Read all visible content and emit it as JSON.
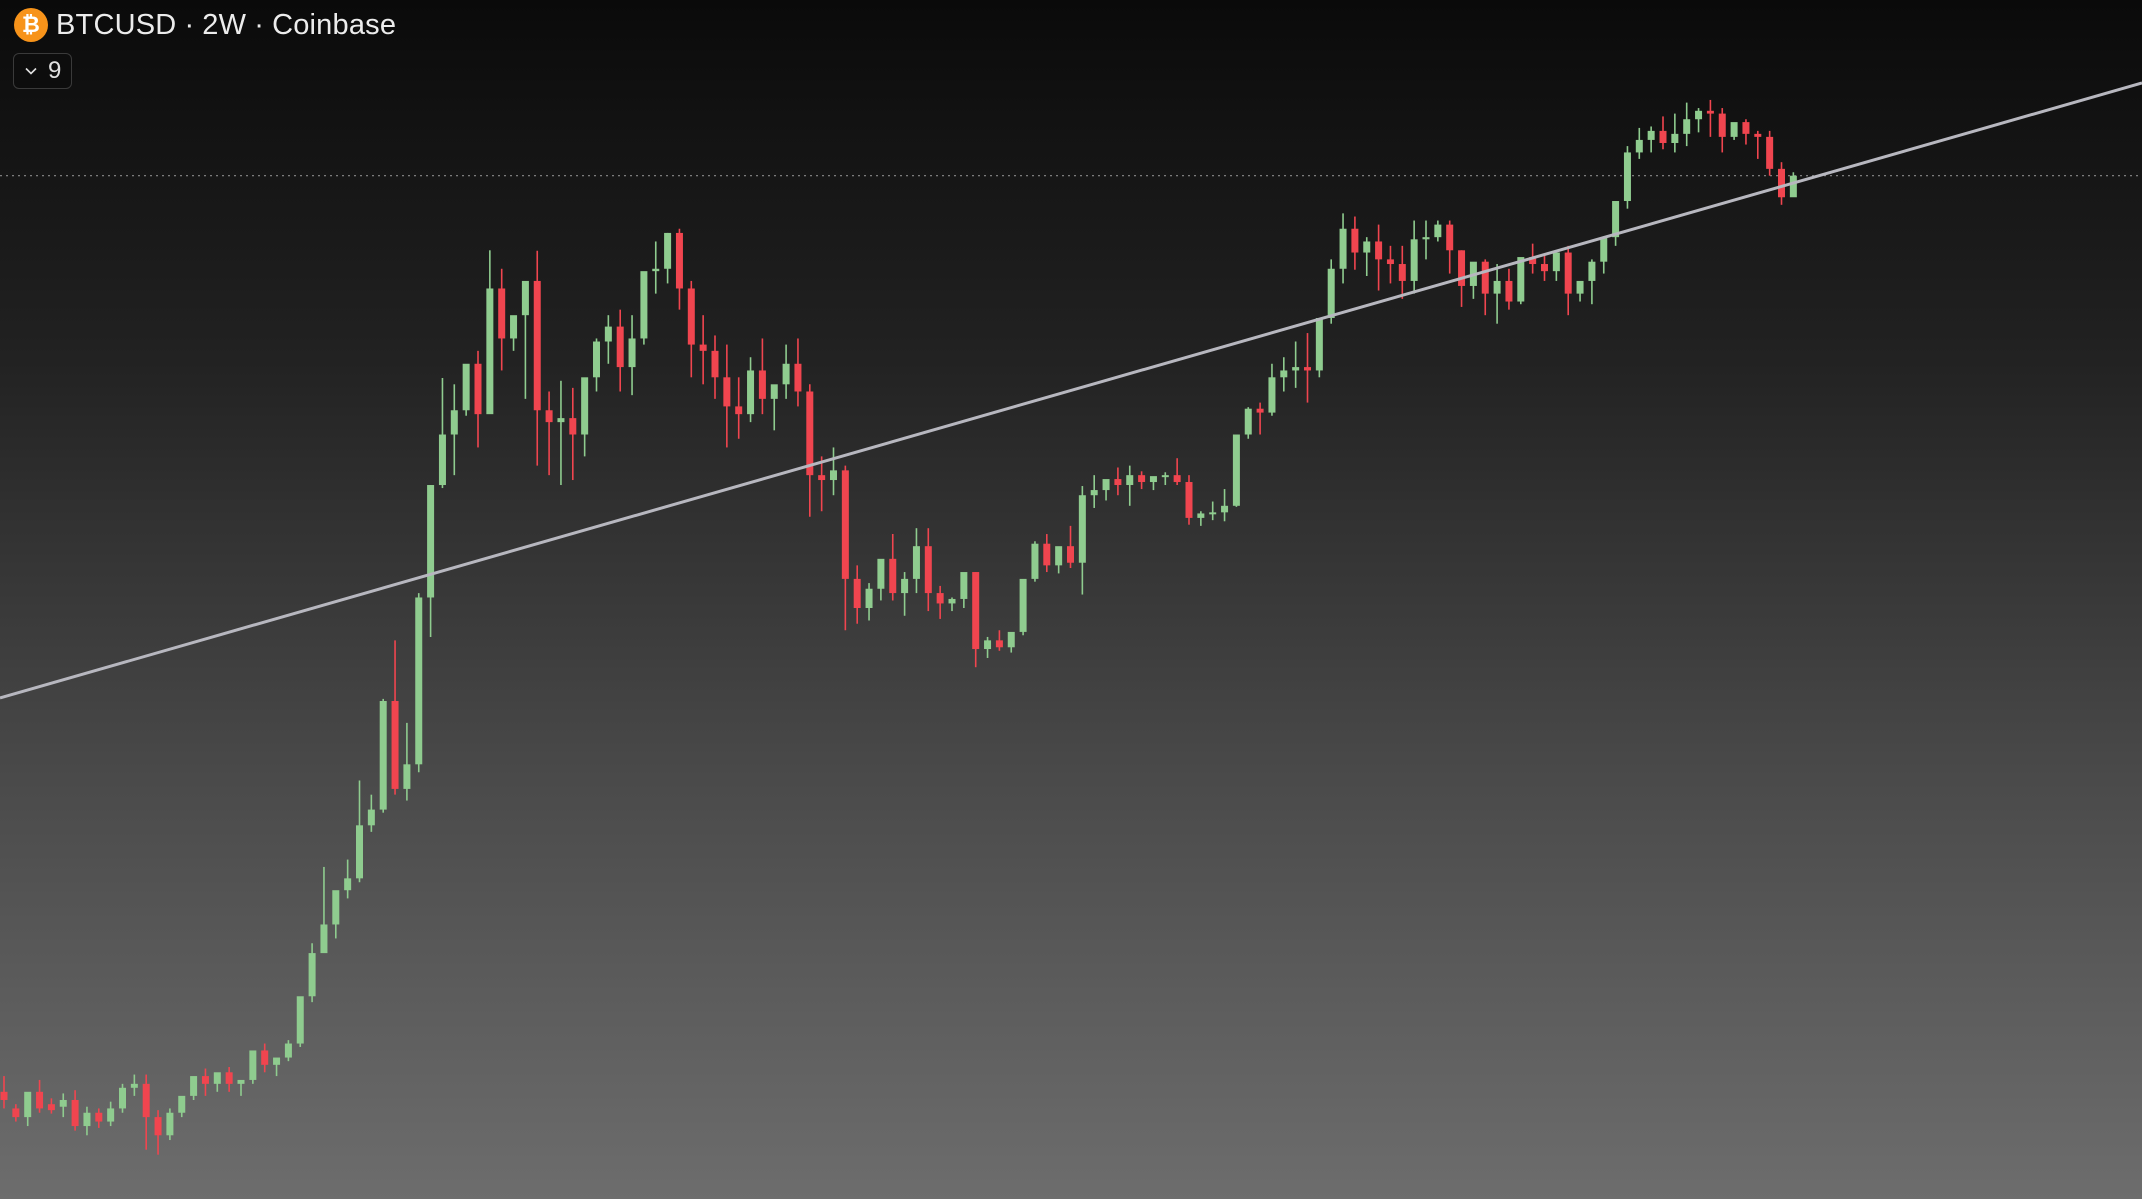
{
  "header": {
    "coin_glyph": "₿",
    "symbol": "BTCUSD",
    "separator": "·",
    "interval": "2W",
    "exchange": "Coinbase",
    "coin_color": "#f7931a"
  },
  "indicators_toggle": {
    "count": "9",
    "icon": "chevron-down-icon"
  },
  "colors": {
    "up": "#8fcc8f",
    "down": "#f0454f",
    "trendline": "#b7b7bf",
    "price_line": "#8a8a8a"
  },
  "chart_data": {
    "type": "candlestick",
    "price_scale": "log",
    "ylim": [
      3000,
      120000
    ],
    "last_price": 84000,
    "candles": [
      [
        3600,
        3800,
        3500,
        3400
      ],
      [
        3400,
        3450,
        3300,
        3250
      ],
      [
        3300,
        3500,
        3600,
        3200
      ],
      [
        3600,
        3750,
        3400,
        3350
      ],
      [
        3450,
        3520,
        3380,
        3340
      ],
      [
        3420,
        3580,
        3500,
        3300
      ],
      [
        3500,
        3620,
        3200,
        3150
      ],
      [
        3200,
        3420,
        3350,
        3100
      ],
      [
        3350,
        3400,
        3250,
        3180
      ],
      [
        3250,
        3480,
        3400,
        3200
      ],
      [
        3400,
        3700,
        3650,
        3350
      ],
      [
        3650,
        3820,
        3700,
        3550
      ],
      [
        3700,
        3820,
        3300,
        2950
      ],
      [
        3300,
        3380,
        3100,
        2900
      ],
      [
        3100,
        3400,
        3350,
        3050
      ],
      [
        3350,
        3450,
        3550,
        3300
      ],
      [
        3550,
        3640,
        3800,
        3500
      ],
      [
        3800,
        3900,
        3700,
        3550
      ],
      [
        3700,
        3720,
        3850,
        3600
      ],
      [
        3850,
        3920,
        3700,
        3600
      ],
      [
        3700,
        3720,
        3750,
        3550
      ],
      [
        3750,
        3850,
        4150,
        3700
      ],
      [
        4150,
        4250,
        3950,
        3850
      ],
      [
        3950,
        3960,
        4050,
        3800
      ],
      [
        4050,
        4300,
        4250,
        4000
      ],
      [
        4250,
        4700,
        5000,
        4200
      ],
      [
        5000,
        6000,
        5800,
        4900
      ],
      [
        5800,
        7800,
        6400,
        6200
      ],
      [
        6400,
        7000,
        7200,
        6100
      ],
      [
        7200,
        8000,
        7500,
        7000
      ],
      [
        7500,
        10500,
        9000,
        7400
      ],
      [
        9000,
        10000,
        9500,
        8800
      ],
      [
        9500,
        13900,
        13800,
        9400
      ],
      [
        13800,
        17000,
        10200,
        10000
      ],
      [
        10200,
        12800,
        11100,
        9800
      ],
      [
        11100,
        20000,
        19700,
        10800
      ],
      [
        19700,
        29000,
        29000,
        17200
      ],
      [
        29000,
        41900,
        34500,
        28700
      ],
      [
        34500,
        41000,
        37500,
        30000
      ],
      [
        37500,
        42000,
        44000,
        36800
      ],
      [
        44000,
        46000,
        37000,
        33000
      ],
      [
        37000,
        65000,
        57000,
        53000
      ],
      [
        57000,
        61000,
        48000,
        43000
      ],
      [
        48000,
        50000,
        52000,
        46000
      ],
      [
        52000,
        58000,
        58500,
        39000
      ],
      [
        58500,
        64900,
        37500,
        31000
      ],
      [
        37500,
        40000,
        36000,
        30000
      ],
      [
        36000,
        41500,
        36500,
        29000
      ],
      [
        36500,
        40500,
        34500,
        29500
      ],
      [
        34500,
        38000,
        42000,
        32000
      ],
      [
        42000,
        48000,
        47500,
        40000
      ],
      [
        47500,
        52000,
        50000,
        44000
      ],
      [
        50000,
        53000,
        43500,
        40000
      ],
      [
        43500,
        52000,
        48000,
        39500
      ],
      [
        48000,
        58000,
        60500,
        47000
      ],
      [
        60500,
        67000,
        61000,
        56000
      ],
      [
        61000,
        69000,
        69000,
        58000
      ],
      [
        69000,
        70000,
        57000,
        53000
      ],
      [
        57000,
        58500,
        47000,
        42000
      ],
      [
        47000,
        52000,
        46000,
        41000
      ],
      [
        46000,
        48500,
        42000,
        39000
      ],
      [
        42000,
        47000,
        38000,
        33000
      ],
      [
        38000,
        42000,
        37000,
        34000
      ],
      [
        37000,
        45000,
        43000,
        36000
      ],
      [
        43000,
        48000,
        39000,
        37000
      ],
      [
        39000,
        40000,
        41000,
        35000
      ],
      [
        41000,
        47000,
        44000,
        39000
      ],
      [
        44000,
        48000,
        40000,
        38000
      ],
      [
        40000,
        41000,
        30000,
        26000
      ],
      [
        30000,
        32000,
        29500,
        26500
      ],
      [
        29500,
        33000,
        30500,
        28000
      ],
      [
        30500,
        31000,
        21000,
        17600
      ],
      [
        21000,
        22000,
        19000,
        18000
      ],
      [
        19000,
        20700,
        20300,
        18200
      ],
      [
        20300,
        22000,
        22500,
        19500
      ],
      [
        22500,
        24500,
        20000,
        19500
      ],
      [
        20000,
        21500,
        21000,
        18500
      ],
      [
        21000,
        25000,
        23500,
        20000
      ],
      [
        23500,
        25000,
        20000,
        18800
      ],
      [
        20000,
        20500,
        19300,
        18300
      ],
      [
        19300,
        19700,
        19600,
        18800
      ],
      [
        19600,
        21000,
        21500,
        19000
      ],
      [
        21500,
        21500,
        16500,
        15500
      ],
      [
        16500,
        17200,
        17000,
        16000
      ],
      [
        17000,
        17600,
        16600,
        16400
      ],
      [
        16600,
        17000,
        17500,
        16300
      ],
      [
        17500,
        19000,
        21000,
        17300
      ],
      [
        21000,
        23900,
        23700,
        20800
      ],
      [
        23700,
        24500,
        22000,
        21500
      ],
      [
        22000,
        22500,
        23500,
        21400
      ],
      [
        23500,
        25200,
        22200,
        21800
      ],
      [
        22200,
        28900,
        28000,
        19900
      ],
      [
        28000,
        30000,
        28500,
        26800
      ],
      [
        28500,
        29000,
        29600,
        27500
      ],
      [
        29600,
        30800,
        29000,
        28000
      ],
      [
        29000,
        31000,
        30000,
        27000
      ],
      [
        30000,
        30400,
        29300,
        28600
      ],
      [
        29300,
        29600,
        29900,
        28500
      ],
      [
        29900,
        30300,
        30000,
        29000
      ],
      [
        30000,
        31800,
        29300,
        29000
      ],
      [
        29300,
        30000,
        25900,
        25300
      ],
      [
        25900,
        26500,
        26300,
        25200
      ],
      [
        26300,
        27400,
        26400,
        25700
      ],
      [
        26400,
        28600,
        27000,
        25600
      ],
      [
        27000,
        31000,
        34500,
        26900
      ],
      [
        34500,
        37900,
        37700,
        34000
      ],
      [
        37700,
        38500,
        37200,
        34500
      ],
      [
        37200,
        44000,
        42000,
        36800
      ],
      [
        42000,
        45000,
        43000,
        40000
      ],
      [
        43000,
        47500,
        43500,
        40500
      ],
      [
        43500,
        48900,
        43000,
        38500
      ],
      [
        43000,
        49000,
        51500,
        42000
      ],
      [
        51500,
        63000,
        61000,
        50500
      ],
      [
        61000,
        73800,
        70000,
        58000
      ],
      [
        70000,
        73000,
        64500,
        60800
      ],
      [
        64500,
        68000,
        67000,
        59500
      ],
      [
        67000,
        71000,
        63000,
        56600
      ],
      [
        63000,
        66000,
        62000,
        58000
      ],
      [
        62000,
        66000,
        58500,
        55000
      ],
      [
        58500,
        72000,
        67500,
        56000
      ],
      [
        67500,
        72000,
        68000,
        63000
      ],
      [
        68000,
        72000,
        71000,
        67000
      ],
      [
        71000,
        72000,
        65000,
        60000
      ],
      [
        65000,
        65000,
        57500,
        53500
      ],
      [
        57500,
        60000,
        62500,
        55000
      ],
      [
        62500,
        63000,
        56000,
        52000
      ],
      [
        56000,
        62000,
        58500,
        50500
      ],
      [
        58500,
        61000,
        54500,
        53000
      ],
      [
        54500,
        56000,
        63500,
        54000
      ],
      [
        63500,
        66500,
        62000,
        60000
      ],
      [
        62000,
        64000,
        60500,
        58500
      ],
      [
        60500,
        64000,
        64500,
        58500
      ],
      [
        64500,
        66000,
        56000,
        52000
      ],
      [
        56000,
        58000,
        58500,
        54500
      ],
      [
        58500,
        63000,
        62500,
        54000
      ],
      [
        62500,
        66000,
        68000,
        60000
      ],
      [
        68000,
        74000,
        77000,
        66000
      ],
      [
        77000,
        93000,
        91000,
        75000
      ],
      [
        91000,
        99000,
        95000,
        89000
      ],
      [
        95000,
        99500,
        98000,
        91000
      ],
      [
        98000,
        103000,
        94000,
        92000
      ],
      [
        94000,
        104000,
        97000,
        91000
      ],
      [
        97000,
        108000,
        102000,
        93000
      ],
      [
        102000,
        106000,
        105000,
        97500
      ],
      [
        105000,
        109000,
        104000,
        96000
      ],
      [
        104000,
        106000,
        96000,
        91000
      ],
      [
        96000,
        99000,
        101000,
        95000
      ],
      [
        101000,
        102000,
        97000,
        93500
      ],
      [
        97000,
        98000,
        96000,
        89000
      ],
      [
        96000,
        98000,
        86000,
        84000
      ],
      [
        86000,
        88000,
        78000,
        76000
      ],
      [
        78000,
        85000,
        84000,
        79000
      ]
    ],
    "trendline": [
      {
        "index": 0,
        "price": 14000
      },
      {
        "index": 160,
        "price": 91000
      }
    ]
  }
}
